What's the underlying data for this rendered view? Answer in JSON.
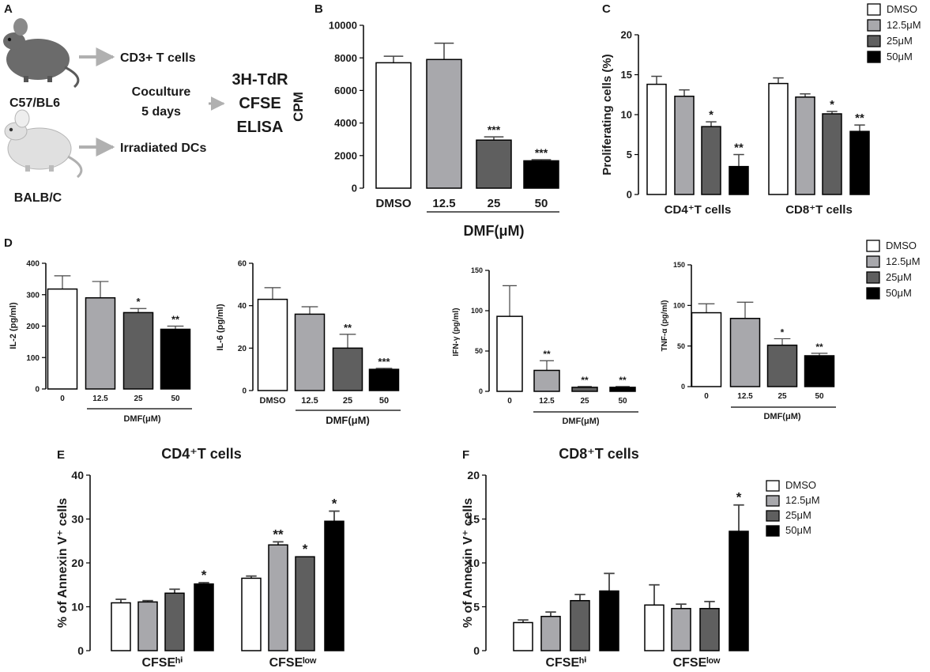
{
  "panel_letters": {
    "a": "A",
    "b": "B",
    "c": "C",
    "d": "D",
    "e": "E",
    "f": "F"
  },
  "schematic": {
    "mouse_top": "C57/BL6",
    "mouse_bottom": "BALB/C",
    "arrow_top_label": "CD3+ T cells",
    "arrow_bottom_label": "Irradiated DCs",
    "coculture_line1": "Coculture",
    "coculture_line2": "5 days",
    "assays": [
      "3H-TdR",
      "CFSE",
      "ELISA"
    ]
  },
  "legend": {
    "entries": [
      "DMSO",
      "12.5μM",
      "25μM",
      "50μM"
    ]
  },
  "colors": {
    "DMSO": "#ffffff",
    "12.5": "#a8a8ac",
    "25": "#5f5f5f",
    "50": "#000000"
  },
  "chart_data": [
    {
      "id": "B",
      "type": "bar",
      "ylabel": "CPM",
      "xlabel": "DMF(μM)",
      "categories": [
        "DMSO",
        "12.5",
        "25",
        "50"
      ],
      "values": [
        7700,
        7900,
        2950,
        1680
      ],
      "errors": [
        400,
        1000,
        200,
        70
      ],
      "significance": [
        "",
        "",
        "***",
        "***"
      ],
      "ylim": [
        0,
        10000
      ],
      "yticks": [
        "0",
        "2000",
        "4000",
        "6000",
        "8000",
        "10000"
      ]
    },
    {
      "id": "C",
      "type": "bar",
      "ylabel": "Proliferating cells (%)",
      "groups": [
        "CD4⁺T cells",
        "CD8⁺T cells"
      ],
      "series": [
        {
          "name": "DMSO",
          "values": [
            13.8,
            13.9
          ],
          "errors": [
            1.0,
            0.7
          ],
          "significance": [
            "",
            ""
          ]
        },
        {
          "name": "12.5μM",
          "values": [
            12.3,
            12.2
          ],
          "errors": [
            0.8,
            0.4
          ],
          "significance": [
            "",
            ""
          ]
        },
        {
          "name": "25μM",
          "values": [
            8.5,
            10.1
          ],
          "errors": [
            0.6,
            0.3
          ],
          "significance": [
            "*",
            "*"
          ]
        },
        {
          "name": "50μM",
          "values": [
            3.5,
            7.9
          ],
          "errors": [
            1.5,
            0.8
          ],
          "significance": [
            "**",
            "**"
          ]
        }
      ],
      "ylim": [
        0,
        20
      ],
      "yticks": [
        "0",
        "5",
        "10",
        "15",
        "20"
      ]
    },
    {
      "id": "D1",
      "type": "bar",
      "ylabel": "IL-2 (pg/ml)",
      "xlabel": "DMF(μM)",
      "categories": [
        "0",
        "12.5",
        "25",
        "50"
      ],
      "values": [
        318,
        290,
        243,
        190
      ],
      "errors": [
        42,
        52,
        13,
        10
      ],
      "significance": [
        "",
        "",
        "*",
        "**"
      ],
      "ylim": [
        0,
        400
      ],
      "yticks": [
        "0",
        "100",
        "200",
        "300",
        "400"
      ]
    },
    {
      "id": "D2",
      "type": "bar",
      "ylabel": "IL-6 (pg/ml)",
      "xlabel": "DMF(μM)",
      "categories": [
        "DMSO",
        "12.5",
        "25",
        "50"
      ],
      "values": [
        43,
        36,
        20,
        10
      ],
      "errors": [
        5.5,
        3.5,
        6.5,
        0.5
      ],
      "significance": [
        "",
        "",
        "**",
        "***"
      ],
      "ylim": [
        0,
        60
      ],
      "yticks": [
        "0",
        "20",
        "40",
        "60"
      ]
    },
    {
      "id": "D3",
      "type": "bar",
      "ylabel": "IFN-γ (pg/ml)",
      "xlabel": "DMF(μM)",
      "categories": [
        "0",
        "12.5",
        "25",
        "50"
      ],
      "values": [
        93,
        26,
        5,
        5
      ],
      "errors": [
        38,
        12,
        1,
        1
      ],
      "significance": [
        "",
        "**",
        "**",
        "**"
      ],
      "ylim": [
        0,
        150
      ],
      "yticks": [
        "0",
        "50",
        "100",
        "150"
      ]
    },
    {
      "id": "D4",
      "type": "bar",
      "ylabel": "TNF-α (pg/ml)",
      "xlabel": "DMF(μM)",
      "categories": [
        "0",
        "12.5",
        "25",
        "50"
      ],
      "values": [
        91,
        84,
        51,
        38
      ],
      "errors": [
        11,
        20,
        8,
        3
      ],
      "significance": [
        "",
        "",
        "*",
        "**"
      ],
      "ylim": [
        0,
        150
      ],
      "yticks": [
        "0",
        "50",
        "100",
        "150"
      ]
    },
    {
      "id": "E",
      "type": "bar",
      "title": "CD4⁺T cells",
      "ylabel": "% of Annexin  V⁺ cells",
      "groups": [
        "CFSEʰⁱ",
        "CFSEˡᵒʷ"
      ],
      "series": [
        {
          "name": "DMSO",
          "values": [
            10.9,
            16.5
          ],
          "errors": [
            0.8,
            0.5
          ],
          "significance": [
            "",
            ""
          ]
        },
        {
          "name": "12.5μM",
          "values": [
            11.1,
            24.1
          ],
          "errors": [
            0.3,
            0.7
          ],
          "significance": [
            "",
            "**"
          ]
        },
        {
          "name": "25μM",
          "values": [
            13.1,
            21.4
          ],
          "errors": [
            0.9,
            0
          ],
          "significance": [
            "",
            "*"
          ]
        },
        {
          "name": "50μM",
          "values": [
            15.2,
            29.5
          ],
          "errors": [
            0.3,
            2.3
          ],
          "significance": [
            "*",
            "*"
          ]
        }
      ],
      "ylim": [
        0,
        40
      ],
      "yticks": [
        "0",
        "10",
        "20",
        "30",
        "40"
      ]
    },
    {
      "id": "F",
      "type": "bar",
      "title": "CD8⁺T cells",
      "ylabel": "% of Annexin  V⁺ cells",
      "groups": [
        "CFSEʰⁱ",
        "CFSEˡᵒʷ"
      ],
      "series": [
        {
          "name": "DMSO",
          "values": [
            3.2,
            5.2
          ],
          "errors": [
            0.3,
            2.3
          ],
          "significance": [
            "",
            ""
          ]
        },
        {
          "name": "12.5μM",
          "values": [
            3.9,
            4.8
          ],
          "errors": [
            0.5,
            0.5
          ],
          "significance": [
            "",
            ""
          ]
        },
        {
          "name": "25μM",
          "values": [
            5.7,
            4.8
          ],
          "errors": [
            0.7,
            0.8
          ],
          "significance": [
            "",
            ""
          ]
        },
        {
          "name": "50μM",
          "values": [
            6.8,
            13.6
          ],
          "errors": [
            2.0,
            3.0
          ],
          "significance": [
            "",
            "*"
          ]
        }
      ],
      "ylim": [
        0,
        20
      ],
      "yticks": [
        "0",
        "5",
        "10",
        "15",
        "20"
      ]
    }
  ]
}
